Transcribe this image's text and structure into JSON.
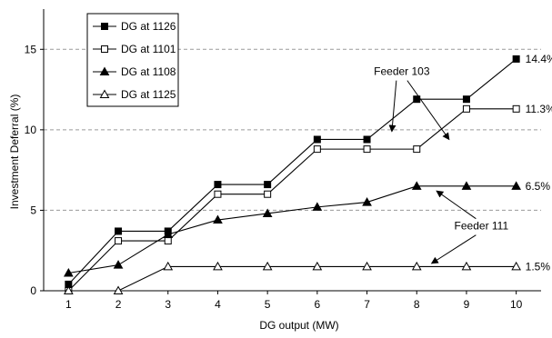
{
  "chart_data": {
    "type": "line",
    "title": "",
    "xlabel": "DG output (MW)",
    "ylabel": "Investment Deferral  (%)",
    "x": [
      1,
      2,
      3,
      4,
      5,
      6,
      7,
      8,
      9,
      10
    ],
    "xlim": [
      0.5,
      10.5
    ],
    "ylim": [
      0,
      17.5
    ],
    "xticks": [
      "1",
      "2",
      "3",
      "4",
      "5",
      "6",
      "7",
      "8",
      "9",
      "10"
    ],
    "yticks": [
      "0",
      "5",
      "10",
      "15"
    ],
    "ytick_values": [
      0,
      5,
      10,
      15
    ],
    "grid": "horizontal dashed",
    "legend_position": "top-left",
    "series": [
      {
        "name": "DG at 1126",
        "marker": "filled-square",
        "values": [
          0.4,
          3.7,
          3.7,
          6.6,
          6.6,
          9.4,
          9.4,
          11.9,
          11.9,
          14.4
        ],
        "end_label": "14.4%"
      },
      {
        "name": "DG at 1101",
        "marker": "open-square",
        "values": [
          0.0,
          3.1,
          3.1,
          6.0,
          6.0,
          8.8,
          8.8,
          8.8,
          11.3,
          11.3
        ],
        "end_label": "11.3%"
      },
      {
        "name": "DG at 1108",
        "marker": "filled-triangle",
        "values": [
          1.1,
          1.6,
          3.5,
          4.4,
          4.8,
          5.2,
          5.5,
          6.5,
          6.5,
          6.5
        ],
        "end_label": "6.5%"
      },
      {
        "name": "DG at 1125",
        "marker": "open-triangle",
        "values": [
          0.0,
          0.0,
          1.5,
          1.5,
          1.5,
          1.5,
          1.5,
          1.5,
          1.5,
          1.5
        ],
        "end_label": "1.5%"
      }
    ],
    "annotations": [
      {
        "text": "Feeder 103",
        "anchor": [
          7.7,
          13.4
        ],
        "arrows": [
          [
            7.5,
            9.9
          ],
          [
            8.65,
            9.4
          ]
        ]
      },
      {
        "text": "Feeder 111",
        "anchor": [
          9.3,
          3.8
        ],
        "arrows": [
          [
            8.4,
            6.2
          ],
          [
            8.3,
            1.7
          ]
        ]
      }
    ]
  }
}
